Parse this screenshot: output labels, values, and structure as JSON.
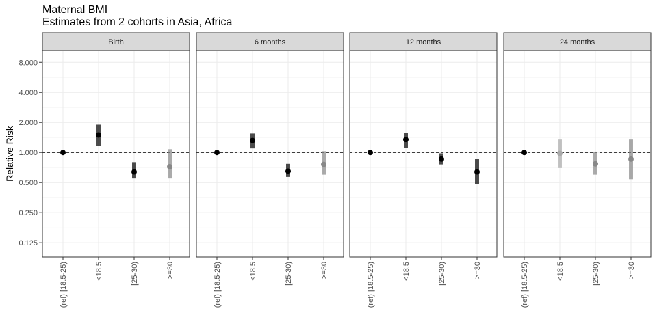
{
  "chart_data": {
    "type": "scatter",
    "title": "Maternal BMI",
    "subtitle": "Estimates from 2 cohorts in Asia, Africa",
    "ylabel": "Relative Risk",
    "xlabel": "",
    "y_scale": "log2",
    "ylim": [
      0.09,
      10.5
    ],
    "y_ticks": [
      "0.125",
      "0.250",
      "0.500",
      "1.000",
      "2.000",
      "4.000",
      "8.000"
    ],
    "reference_line": 1,
    "grid": true,
    "categories": [
      "(ref) [18.5-25)",
      "<18.5",
      "[25-30)",
      ">=30"
    ],
    "panels": [
      {
        "label": "Birth",
        "points": [
          {
            "category": "(ref) [18.5-25)",
            "rr": 1.0,
            "lower": 1.0,
            "upper": 1.0,
            "color": "#000000"
          },
          {
            "category": "<18.5",
            "rr": 1.5,
            "lower": 1.17,
            "upper": 1.9,
            "color": "#000000"
          },
          {
            "category": "[25-30)",
            "rr": 0.64,
            "lower": 0.55,
            "upper": 0.8,
            "color": "#000000"
          },
          {
            "category": ">=30",
            "rr": 0.72,
            "lower": 0.55,
            "upper": 1.08,
            "color": "#888888"
          }
        ]
      },
      {
        "label": "6 months",
        "points": [
          {
            "category": "(ref) [18.5-25)",
            "rr": 1.0,
            "lower": 1.0,
            "upper": 1.0,
            "color": "#000000"
          },
          {
            "category": "<18.5",
            "rr": 1.32,
            "lower": 1.1,
            "upper": 1.55,
            "color": "#000000"
          },
          {
            "category": "[25-30)",
            "rr": 0.65,
            "lower": 0.57,
            "upper": 0.77,
            "color": "#000000"
          },
          {
            "category": ">=30",
            "rr": 0.76,
            "lower": 0.6,
            "upper": 1.03,
            "color": "#888888"
          }
        ]
      },
      {
        "label": "12 months",
        "points": [
          {
            "category": "(ref) [18.5-25)",
            "rr": 1.0,
            "lower": 1.0,
            "upper": 1.0,
            "color": "#000000"
          },
          {
            "category": "<18.5",
            "rr": 1.35,
            "lower": 1.12,
            "upper": 1.58,
            "color": "#000000"
          },
          {
            "category": "[25-30)",
            "rr": 0.86,
            "lower": 0.76,
            "upper": 0.98,
            "color": "#000000"
          },
          {
            "category": ">=30",
            "rr": 0.64,
            "lower": 0.48,
            "upper": 0.86,
            "color": "#000000"
          }
        ]
      },
      {
        "label": "24 months",
        "points": [
          {
            "category": "(ref) [18.5-25)",
            "rr": 1.0,
            "lower": 1.0,
            "upper": 1.0,
            "color": "#000000"
          },
          {
            "category": "<18.5",
            "rr": 0.98,
            "lower": 0.7,
            "upper": 1.35,
            "color": "#aaaaaa"
          },
          {
            "category": "[25-30)",
            "rr": 0.77,
            "lower": 0.6,
            "upper": 1.02,
            "color": "#888888"
          },
          {
            "category": ">=30",
            "rr": 0.86,
            "lower": 0.54,
            "upper": 1.35,
            "color": "#888888"
          }
        ]
      }
    ]
  }
}
